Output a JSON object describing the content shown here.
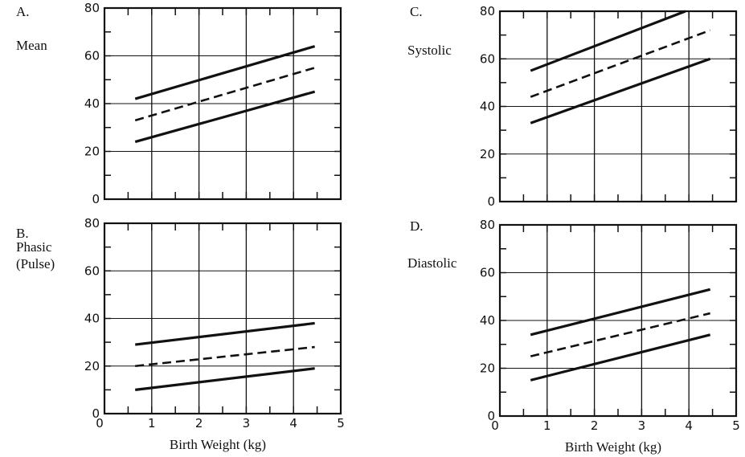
{
  "chart_data": [
    {
      "panel": "A.",
      "type": "line",
      "ylabel": "Mean",
      "ylabel_lines": [
        "Mean"
      ],
      "xlabel": "",
      "xlim": [
        0,
        5
      ],
      "ylim": [
        0,
        80
      ],
      "x_ticks": [],
      "y_ticks": [
        "0",
        "20",
        "40",
        "60",
        "80"
      ],
      "grid": true,
      "series": [
        {
          "style": "solid",
          "points": [
            [
              0.65,
              42
            ],
            [
              4.45,
              64
            ]
          ]
        },
        {
          "style": "dashed",
          "points": [
            [
              0.65,
              33
            ],
            [
              4.45,
              55
            ]
          ]
        },
        {
          "style": "solid",
          "points": [
            [
              0.65,
              24
            ],
            [
              4.45,
              45
            ]
          ]
        }
      ]
    },
    {
      "panel": "C.",
      "type": "line",
      "ylabel": "Systolic",
      "ylabel_lines": [
        "Systolic"
      ],
      "xlabel": "",
      "xlim": [
        0,
        5
      ],
      "ylim": [
        0,
        80
      ],
      "x_ticks": [],
      "y_ticks": [
        "0",
        "20",
        "40",
        "60",
        "80"
      ],
      "grid": true,
      "series": [
        {
          "style": "solid",
          "points": [
            [
              0.65,
              55
            ],
            [
              4.45,
              84
            ]
          ]
        },
        {
          "style": "dashed",
          "points": [
            [
              0.65,
              44
            ],
            [
              4.45,
              72
            ]
          ]
        },
        {
          "style": "solid",
          "points": [
            [
              0.65,
              33
            ],
            [
              4.45,
              60
            ]
          ]
        }
      ]
    },
    {
      "panel": "B.",
      "type": "line",
      "ylabel": "Phasic (Pulse)",
      "ylabel_lines": [
        "Phasic",
        "(Pulse)"
      ],
      "xlabel": "Birth Weight (kg)",
      "xlim": [
        0,
        5
      ],
      "ylim": [
        0,
        80
      ],
      "x_ticks": [
        "0",
        "1",
        "2",
        "3",
        "4",
        "5"
      ],
      "y_ticks": [
        "0",
        "20",
        "40",
        "60",
        "80"
      ],
      "grid": true,
      "series": [
        {
          "style": "solid",
          "points": [
            [
              0.65,
              29
            ],
            [
              4.45,
              38
            ]
          ]
        },
        {
          "style": "dashed",
          "points": [
            [
              0.65,
              20
            ],
            [
              4.45,
              28
            ]
          ]
        },
        {
          "style": "solid",
          "points": [
            [
              0.65,
              10
            ],
            [
              4.45,
              19
            ]
          ]
        }
      ]
    },
    {
      "panel": "D.",
      "type": "line",
      "ylabel": "Diastolic",
      "ylabel_lines": [
        "Diastolic"
      ],
      "xlabel": "Birth Weight (kg)",
      "xlim": [
        0,
        5
      ],
      "ylim": [
        0,
        80
      ],
      "x_ticks": [
        "0",
        "1",
        "2",
        "3",
        "4",
        "5"
      ],
      "y_ticks": [
        "0",
        "20",
        "40",
        "60",
        "80"
      ],
      "grid": true,
      "series": [
        {
          "style": "solid",
          "points": [
            [
              0.65,
              34
            ],
            [
              4.45,
              53
            ]
          ]
        },
        {
          "style": "dashed",
          "points": [
            [
              0.65,
              25
            ],
            [
              4.45,
              43
            ]
          ]
        },
        {
          "style": "solid",
          "points": [
            [
              0.65,
              15
            ],
            [
              4.45,
              34
            ]
          ]
        }
      ]
    }
  ]
}
